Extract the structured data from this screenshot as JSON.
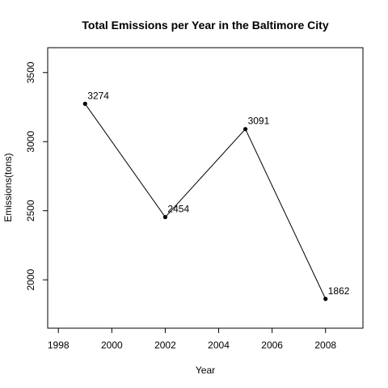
{
  "chart_data": {
    "type": "line",
    "title": "Total Emissions per Year in the Baltimore City",
    "xlabel": "Year",
    "ylabel": "Emissions(tons)",
    "x": [
      1999,
      2002,
      2005,
      2008
    ],
    "series": [
      {
        "values": [
          3274,
          2454,
          3091,
          1862
        ]
      }
    ],
    "data_labels": [
      "3274",
      "2454",
      "3091",
      "1862"
    ],
    "xlim": [
      1997.6,
      2009.4
    ],
    "ylim": [
      1650,
      3680
    ],
    "x_ticks": [
      1998,
      2000,
      2002,
      2004,
      2006,
      2008
    ],
    "x_tick_labels": [
      "1998",
      "2000",
      "2002",
      "2004",
      "2006",
      "2008"
    ],
    "y_ticks": [
      2000,
      2500,
      3000,
      3500
    ],
    "y_tick_labels": [
      "2000",
      "2500",
      "3000",
      "3500"
    ],
    "grid": false,
    "legend": "none",
    "point_style": "filled-circle",
    "line_color": "#000000"
  }
}
